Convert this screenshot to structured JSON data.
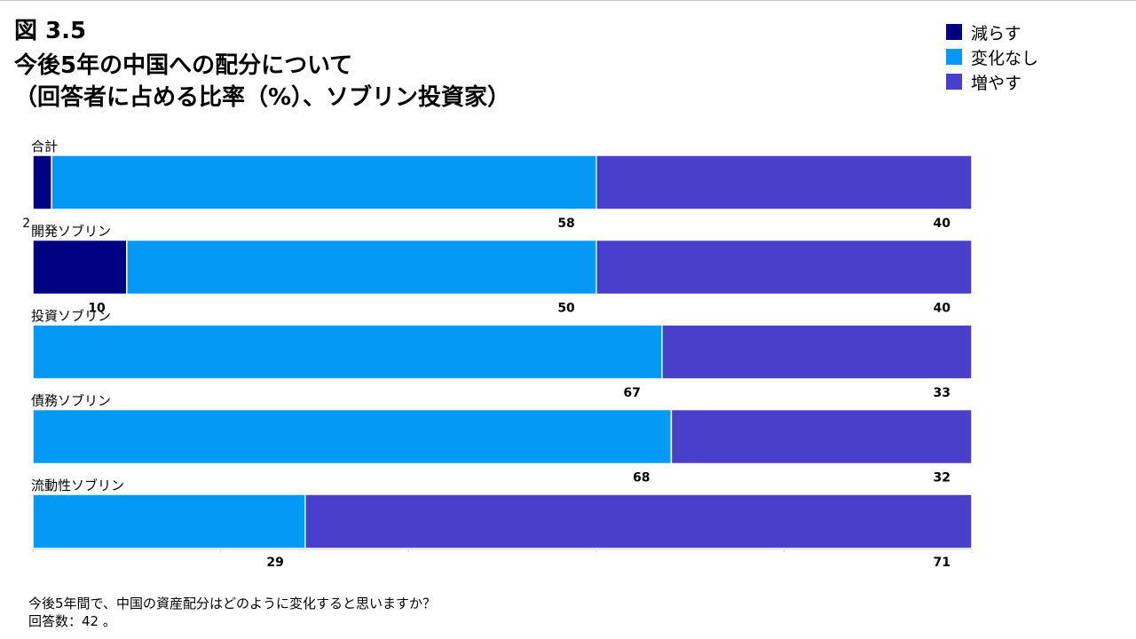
{
  "figure_number": "図 3.5",
  "title_line1": "今後5年の中国への配分について",
  "title_line2": "（回答者に占める比率（%）、ソブリン投資家）",
  "legend": [
    {
      "label": "減らす",
      "color": "#000080"
    },
    {
      "label": "変化なし",
      "color": "#0599f6"
    },
    {
      "label": "増やす",
      "color": "#4a3fcb"
    }
  ],
  "chart_data": {
    "type": "bar",
    "orientation": "horizontal",
    "stacked": true,
    "categories": [
      "合計",
      "開発ソブリン",
      "投資ソブリン",
      "債務ソブリン",
      "流動性ソブリン"
    ],
    "series": [
      {
        "name": "減らす",
        "values": [
          2,
          10,
          0,
          0,
          0
        ]
      },
      {
        "name": "変化なし",
        "values": [
          58,
          50,
          67,
          68,
          29
        ]
      },
      {
        "name": "増やす",
        "values": [
          40,
          40,
          33,
          32,
          71
        ]
      }
    ],
    "xlim": [
      0,
      100
    ],
    "unit": "%"
  },
  "footnote_line1": "今後5年間で、中国の資産配分はどのように変化すると思いますか？",
  "footnote_line2": "回答数：42 。"
}
